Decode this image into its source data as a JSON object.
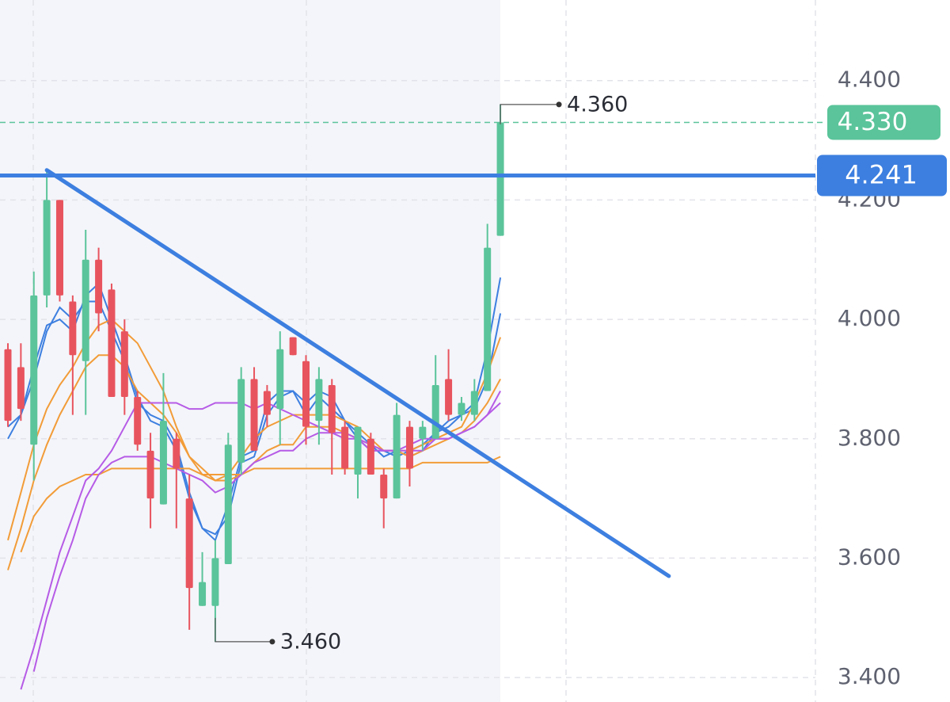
{
  "chart_data": {
    "type": "candlestick",
    "ylim": [
      3.359,
      4.535
    ],
    "yticks": [
      {
        "value": 4.4,
        "label": "4.400"
      },
      {
        "value": 4.2,
        "label": "4.200"
      },
      {
        "value": 4.0,
        "label": "4.000"
      },
      {
        "value": 3.8,
        "label": "3.800"
      },
      {
        "value": 3.6,
        "label": "3.600"
      },
      {
        "value": 3.4,
        "label": "3.400"
      }
    ],
    "grid": true,
    "up_color": "#5bc49a",
    "down_color": "#e8545e",
    "candles": [
      {
        "open": 3.95,
        "high": 3.96,
        "low": 3.82,
        "close": 3.83
      },
      {
        "open": 3.92,
        "high": 3.96,
        "low": 3.83,
        "close": 3.85
      },
      {
        "open": 3.79,
        "high": 4.08,
        "low": 3.73,
        "close": 4.04
      },
      {
        "open": 4.04,
        "high": 4.25,
        "low": 4.02,
        "close": 4.2
      },
      {
        "open": 4.2,
        "high": 4.2,
        "low": 4.03,
        "close": 4.04
      },
      {
        "open": 4.03,
        "high": 4.04,
        "low": 3.84,
        "close": 3.94
      },
      {
        "open": 3.93,
        "high": 4.15,
        "low": 3.84,
        "close": 4.1
      },
      {
        "open": 4.1,
        "high": 4.12,
        "low": 3.98,
        "close": 4.01
      },
      {
        "open": 4.05,
        "high": 4.06,
        "low": 3.87,
        "close": 3.87
      },
      {
        "open": 3.98,
        "high": 4.0,
        "low": 3.84,
        "close": 3.87
      },
      {
        "open": 3.87,
        "high": 3.88,
        "low": 3.78,
        "close": 3.79
      },
      {
        "open": 3.78,
        "high": 3.81,
        "low": 3.65,
        "close": 3.7
      },
      {
        "open": 3.69,
        "high": 3.91,
        "low": 3.69,
        "close": 3.83
      },
      {
        "open": 3.8,
        "high": 3.81,
        "low": 3.65,
        "close": 3.75
      },
      {
        "open": 3.7,
        "high": 3.74,
        "low": 3.48,
        "close": 3.55
      },
      {
        "open": 3.52,
        "high": 3.61,
        "low": 3.52,
        "close": 3.56
      },
      {
        "open": 3.52,
        "high": 3.63,
        "low": 3.46,
        "close": 3.6
      },
      {
        "open": 3.59,
        "high": 3.81,
        "low": 3.59,
        "close": 3.79
      },
      {
        "open": 3.76,
        "high": 3.92,
        "low": 3.74,
        "close": 3.9
      },
      {
        "open": 3.9,
        "high": 3.92,
        "low": 3.78,
        "close": 3.78
      },
      {
        "open": 3.88,
        "high": 3.89,
        "low": 3.82,
        "close": 3.84
      },
      {
        "open": 3.85,
        "high": 3.98,
        "low": 3.79,
        "close": 3.95
      },
      {
        "open": 3.97,
        "high": 3.97,
        "low": 3.94,
        "close": 3.94
      },
      {
        "open": 3.93,
        "high": 3.94,
        "low": 3.79,
        "close": 3.82
      },
      {
        "open": 3.83,
        "high": 3.92,
        "low": 3.79,
        "close": 3.9
      },
      {
        "open": 3.89,
        "high": 3.9,
        "low": 3.74,
        "close": 3.81
      },
      {
        "open": 3.82,
        "high": 3.83,
        "low": 3.74,
        "close": 3.75
      },
      {
        "open": 3.74,
        "high": 3.82,
        "low": 3.7,
        "close": 3.82
      },
      {
        "open": 3.8,
        "high": 3.81,
        "low": 3.74,
        "close": 3.74
      },
      {
        "open": 3.74,
        "high": 3.75,
        "low": 3.65,
        "close": 3.7
      },
      {
        "open": 3.7,
        "high": 3.86,
        "low": 3.7,
        "close": 3.84
      },
      {
        "open": 3.82,
        "high": 3.83,
        "low": 3.72,
        "close": 3.75
      },
      {
        "open": 3.8,
        "high": 3.83,
        "low": 3.78,
        "close": 3.82
      },
      {
        "open": 3.8,
        "high": 3.94,
        "low": 3.8,
        "close": 3.89
      },
      {
        "open": 3.9,
        "high": 3.95,
        "low": 3.83,
        "close": 3.84
      },
      {
        "open": 3.84,
        "high": 3.87,
        "low": 3.83,
        "close": 3.86
      },
      {
        "open": 3.84,
        "high": 3.9,
        "low": 3.83,
        "close": 3.88
      },
      {
        "open": 3.88,
        "high": 4.16,
        "low": 3.88,
        "close": 4.12
      },
      {
        "open": 4.14,
        "high": 4.36,
        "low": 4.14,
        "close": 4.33
      }
    ],
    "series": [
      {
        "color": "#3d7fe0",
        "values": [
          3.82,
          3.84,
          3.92,
          3.99,
          4.0,
          3.98,
          4.04,
          4.06,
          4.0,
          3.94,
          3.87,
          3.83,
          3.82,
          3.78,
          3.7,
          3.65,
          3.63,
          3.69,
          3.77,
          3.78,
          3.86,
          3.88,
          3.88,
          3.86,
          3.88,
          3.87,
          3.83,
          3.81,
          3.79,
          3.77,
          3.78,
          3.77,
          3.78,
          3.81,
          3.83,
          3.84,
          3.86,
          3.95,
          4.07
        ]
      },
      {
        "color": "#3d7fe0",
        "values": [
          3.8,
          3.84,
          3.9,
          3.98,
          4.02,
          4.0,
          4.03,
          4.03,
          3.98,
          3.93,
          3.86,
          3.84,
          3.83,
          3.79,
          3.71,
          3.65,
          3.64,
          3.67,
          3.76,
          3.77,
          3.84,
          3.87,
          3.88,
          3.84,
          3.87,
          3.85,
          3.83,
          3.8,
          3.78,
          3.78,
          3.77,
          3.78,
          3.79,
          3.81,
          3.82,
          3.84,
          3.85,
          3.9,
          4.01
        ]
      },
      {
        "color": "#f29c38",
        "values": [
          3.63,
          3.71,
          3.79,
          3.85,
          3.89,
          3.92,
          3.96,
          3.99,
          4.0,
          3.98,
          3.96,
          3.92,
          3.88,
          3.82,
          3.77,
          3.74,
          3.73,
          3.74,
          3.77,
          3.8,
          3.82,
          3.83,
          3.84,
          3.84,
          3.84,
          3.84,
          3.83,
          3.82,
          3.8,
          3.78,
          3.78,
          3.78,
          3.79,
          3.8,
          3.81,
          3.82,
          3.86,
          3.91,
          3.97
        ]
      },
      {
        "color": "#f29c38",
        "values": [
          3.58,
          3.65,
          3.73,
          3.79,
          3.84,
          3.88,
          3.92,
          3.94,
          3.94,
          3.92,
          3.88,
          3.86,
          3.84,
          3.81,
          3.77,
          3.75,
          3.73,
          3.73,
          3.74,
          3.76,
          3.78,
          3.79,
          3.79,
          3.82,
          3.82,
          3.82,
          3.81,
          3.8,
          3.79,
          3.78,
          3.78,
          3.77,
          3.78,
          3.79,
          3.8,
          3.81,
          3.83,
          3.86,
          3.9
        ]
      },
      {
        "color": "#f29c38",
        "values": [
          null,
          3.61,
          3.67,
          3.7,
          3.72,
          3.73,
          3.74,
          3.74,
          3.75,
          3.75,
          3.75,
          3.75,
          3.75,
          3.75,
          3.75,
          3.74,
          3.74,
          3.74,
          3.74,
          3.75,
          3.75,
          3.75,
          3.75,
          3.75,
          3.75,
          3.75,
          3.75,
          3.75,
          3.75,
          3.75,
          3.75,
          3.75,
          3.76,
          3.76,
          3.76,
          3.76,
          3.76,
          3.76,
          3.77
        ]
      },
      {
        "color": "#b65be6",
        "values": [
          null,
          3.38,
          3.45,
          3.53,
          3.61,
          3.67,
          3.73,
          3.75,
          3.78,
          3.82,
          3.86,
          3.86,
          3.86,
          3.86,
          3.85,
          3.85,
          3.86,
          3.86,
          3.86,
          3.85,
          3.86,
          3.85,
          3.84,
          3.83,
          3.82,
          3.81,
          3.8,
          3.8,
          3.79,
          3.78,
          3.78,
          3.79,
          3.8,
          3.8,
          3.8,
          3.81,
          3.82,
          3.84,
          3.86
        ]
      },
      {
        "color": "#b65be6",
        "values": [
          null,
          null,
          3.41,
          3.5,
          3.57,
          3.63,
          3.7,
          3.74,
          3.76,
          3.77,
          3.77,
          3.77,
          3.76,
          3.75,
          3.74,
          3.73,
          3.71,
          3.72,
          3.74,
          3.76,
          3.77,
          3.78,
          3.78,
          3.8,
          3.81,
          3.81,
          3.81,
          3.8,
          3.78,
          3.78,
          3.78,
          3.78,
          3.78,
          3.8,
          3.8,
          3.81,
          3.82,
          3.84,
          3.88
        ]
      }
    ],
    "trendline": {
      "color": "#3d7fe0",
      "from": [
        3,
        4.25
      ],
      "to": [
        51,
        3.57
      ]
    },
    "level_line": {
      "color": "#3d7fe0",
      "value": 4.241
    },
    "last_price": {
      "color": "#5bc49a",
      "value": 4.33,
      "label": "4.330"
    },
    "high_marker": {
      "index": 38,
      "value": 4.36,
      "label": "4.360"
    },
    "low_marker": {
      "index": 16,
      "value": 3.46,
      "label": "3.460"
    }
  }
}
